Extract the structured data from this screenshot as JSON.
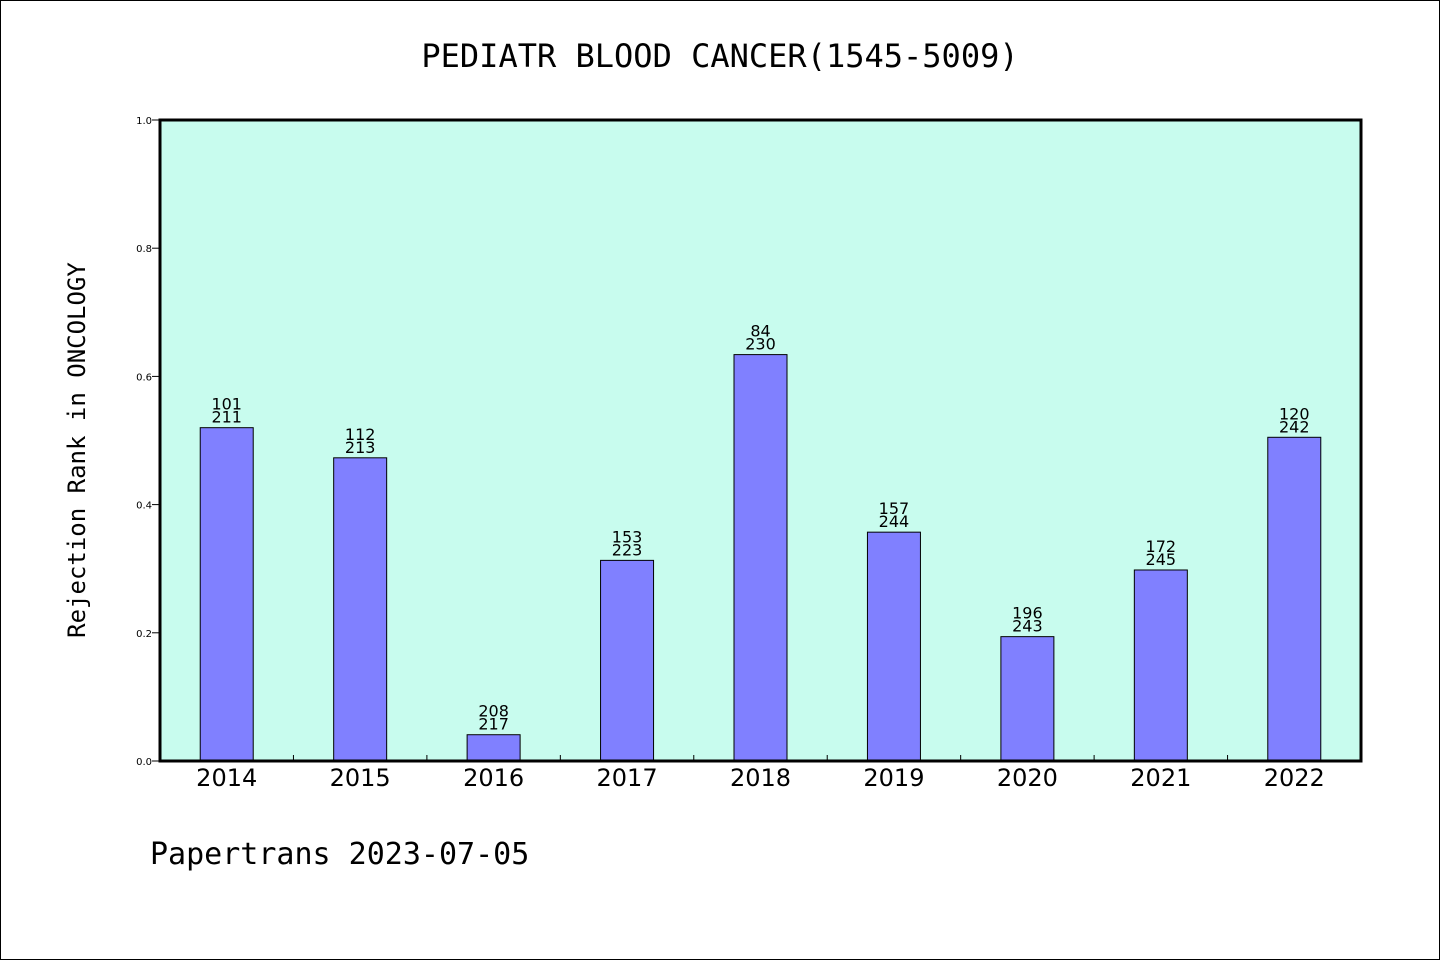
{
  "chart_data": {
    "type": "bar",
    "title": "PEDIATR BLOOD CANCER(1545-5009)",
    "xlabel": "",
    "ylabel": "Rejection Rank in ONCOLOGY",
    "ylim": [
      0,
      1.0
    ],
    "yticks": [
      "0.0",
      "0.2",
      "0.4",
      "0.6",
      "0.8",
      "1.0"
    ],
    "categories": [
      "2014",
      "2015",
      "2016",
      "2017",
      "2018",
      "2019",
      "2020",
      "2021",
      "2022"
    ],
    "values": [
      0.52,
      0.473,
      0.041,
      0.313,
      0.634,
      0.357,
      0.194,
      0.298,
      0.505
    ],
    "labels_top": [
      "101",
      "112",
      "208",
      "153",
      "84",
      "157",
      "196",
      "172",
      "120"
    ],
    "labels_bottom": [
      "211",
      "213",
      "217",
      "223",
      "230",
      "244",
      "243",
      "245",
      "242"
    ],
    "colors": {
      "plot_background": "#c8fcee",
      "bar_fill": "#8080ff",
      "bar_stroke": "#000000"
    },
    "grid": false,
    "legend": "none"
  },
  "footer": {
    "text": "Papertrans 2023-07-05"
  }
}
